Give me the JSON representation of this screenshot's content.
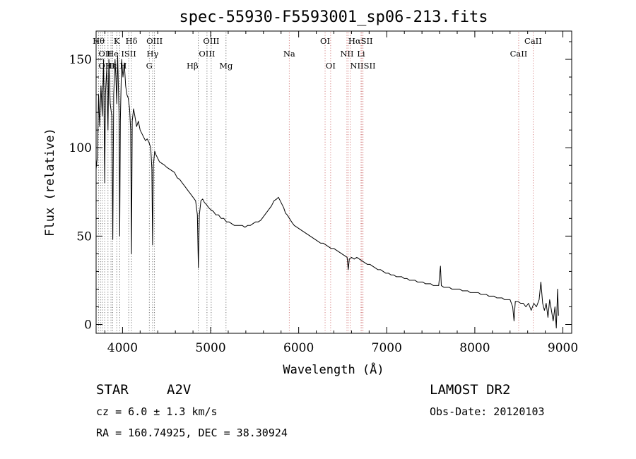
{
  "chart_data": {
    "type": "line",
    "title": "spec-55930-F5593001_sp06-213.fits",
    "xlabel": "Wavelength (Å)",
    "ylabel": "Flux (relative)",
    "xlim": [
      3700,
      9100
    ],
    "ylim": [
      -5,
      166
    ],
    "xticks": [
      4000,
      5000,
      6000,
      7000,
      8000,
      9000
    ],
    "yticks": [
      0,
      50,
      100,
      150
    ],
    "grid": false,
    "series": [
      {
        "values": [
          [
            3700,
            88
          ],
          [
            3715,
            95
          ],
          [
            3728,
            130
          ],
          [
            3740,
            112
          ],
          [
            3755,
            135
          ],
          [
            3770,
            118
          ],
          [
            3785,
            150
          ],
          [
            3798,
            80
          ],
          [
            3806,
            130
          ],
          [
            3820,
            145
          ],
          [
            3835,
            110
          ],
          [
            3845,
            150
          ],
          [
            3860,
            125
          ],
          [
            3878,
            118
          ],
          [
            3889,
            48
          ],
          [
            3900,
            130
          ],
          [
            3915,
            150
          ],
          [
            3925,
            140
          ],
          [
            3934,
            125
          ],
          [
            3945,
            152
          ],
          [
            3955,
            130
          ],
          [
            3960,
            120
          ],
          [
            3968,
            50
          ],
          [
            3975,
            115
          ],
          [
            3990,
            150
          ],
          [
            4005,
            140
          ],
          [
            4020,
            148
          ],
          [
            4035,
            135
          ],
          [
            4050,
            130
          ],
          [
            4065,
            128
          ],
          [
            4080,
            122
          ],
          [
            4092,
            110
          ],
          [
            4102,
            40
          ],
          [
            4110,
            115
          ],
          [
            4125,
            122
          ],
          [
            4140,
            118
          ],
          [
            4160,
            112
          ],
          [
            4180,
            115
          ],
          [
            4200,
            110
          ],
          [
            4220,
            108
          ],
          [
            4240,
            106
          ],
          [
            4260,
            104
          ],
          [
            4280,
            105
          ],
          [
            4300,
            103
          ],
          [
            4320,
            100
          ],
          [
            4333,
            88
          ],
          [
            4341,
            45
          ],
          [
            4350,
            90
          ],
          [
            4365,
            98
          ],
          [
            4380,
            96
          ],
          [
            4400,
            94
          ],
          [
            4420,
            92
          ],
          [
            4450,
            91
          ],
          [
            4480,
            90
          ],
          [
            4500,
            89
          ],
          [
            4530,
            88
          ],
          [
            4560,
            87
          ],
          [
            4590,
            86
          ],
          [
            4620,
            83
          ],
          [
            4650,
            82
          ],
          [
            4680,
            80
          ],
          [
            4710,
            78
          ],
          [
            4740,
            76
          ],
          [
            4770,
            74
          ],
          [
            4800,
            72
          ],
          [
            4830,
            70
          ],
          [
            4850,
            62
          ],
          [
            4861,
            32
          ],
          [
            4872,
            62
          ],
          [
            4890,
            70
          ],
          [
            4910,
            71
          ],
          [
            4930,
            69
          ],
          [
            4950,
            68
          ],
          [
            4980,
            66
          ],
          [
            5000,
            65
          ],
          [
            5030,
            64
          ],
          [
            5060,
            62
          ],
          [
            5090,
            62
          ],
          [
            5120,
            60
          ],
          [
            5150,
            60
          ],
          [
            5180,
            58
          ],
          [
            5210,
            58
          ],
          [
            5240,
            57
          ],
          [
            5270,
            56
          ],
          [
            5300,
            56
          ],
          [
            5330,
            56
          ],
          [
            5360,
            56
          ],
          [
            5390,
            55
          ],
          [
            5420,
            56
          ],
          [
            5450,
            56
          ],
          [
            5480,
            57
          ],
          [
            5510,
            58
          ],
          [
            5540,
            58
          ],
          [
            5570,
            59
          ],
          [
            5600,
            61
          ],
          [
            5630,
            63
          ],
          [
            5660,
            65
          ],
          [
            5690,
            67
          ],
          [
            5720,
            70
          ],
          [
            5750,
            71
          ],
          [
            5770,
            72
          ],
          [
            5790,
            70
          ],
          [
            5810,
            68
          ],
          [
            5830,
            66
          ],
          [
            5850,
            63
          ],
          [
            5870,
            62
          ],
          [
            5895,
            60
          ],
          [
            5920,
            58
          ],
          [
            5950,
            56
          ],
          [
            5980,
            55
          ],
          [
            6010,
            54
          ],
          [
            6040,
            53
          ],
          [
            6070,
            52
          ],
          [
            6100,
            51
          ],
          [
            6130,
            50
          ],
          [
            6160,
            49
          ],
          [
            6190,
            48
          ],
          [
            6220,
            47
          ],
          [
            6250,
            46
          ],
          [
            6280,
            46
          ],
          [
            6310,
            45
          ],
          [
            6340,
            44
          ],
          [
            6370,
            43
          ],
          [
            6400,
            43
          ],
          [
            6430,
            42
          ],
          [
            6460,
            41
          ],
          [
            6490,
            40
          ],
          [
            6520,
            39
          ],
          [
            6550,
            38
          ],
          [
            6563,
            31
          ],
          [
            6575,
            37
          ],
          [
            6600,
            38
          ],
          [
            6630,
            37
          ],
          [
            6660,
            38
          ],
          [
            6690,
            37
          ],
          [
            6720,
            36
          ],
          [
            6750,
            35
          ],
          [
            6780,
            34
          ],
          [
            6810,
            34
          ],
          [
            6840,
            33
          ],
          [
            6870,
            32
          ],
          [
            6900,
            31
          ],
          [
            6930,
            31
          ],
          [
            6960,
            30
          ],
          [
            6990,
            29
          ],
          [
            7020,
            29
          ],
          [
            7050,
            28
          ],
          [
            7080,
            28
          ],
          [
            7110,
            27
          ],
          [
            7140,
            27
          ],
          [
            7170,
            27
          ],
          [
            7200,
            26
          ],
          [
            7230,
            26
          ],
          [
            7260,
            25
          ],
          [
            7290,
            25
          ],
          [
            7320,
            25
          ],
          [
            7350,
            24
          ],
          [
            7380,
            24
          ],
          [
            7410,
            24
          ],
          [
            7440,
            23
          ],
          [
            7470,
            23
          ],
          [
            7500,
            23
          ],
          [
            7530,
            22
          ],
          [
            7560,
            22
          ],
          [
            7590,
            22
          ],
          [
            7610,
            33
          ],
          [
            7620,
            22
          ],
          [
            7650,
            21
          ],
          [
            7680,
            21
          ],
          [
            7710,
            21
          ],
          [
            7740,
            20
          ],
          [
            7770,
            20
          ],
          [
            7800,
            20
          ],
          [
            7830,
            20
          ],
          [
            7860,
            19
          ],
          [
            7890,
            19
          ],
          [
            7920,
            19
          ],
          [
            7950,
            18
          ],
          [
            7980,
            18
          ],
          [
            8010,
            18
          ],
          [
            8040,
            18
          ],
          [
            8070,
            17
          ],
          [
            8100,
            17
          ],
          [
            8130,
            17
          ],
          [
            8160,
            16
          ],
          [
            8190,
            16
          ],
          [
            8220,
            16
          ],
          [
            8250,
            15
          ],
          [
            8280,
            15
          ],
          [
            8310,
            15
          ],
          [
            8340,
            14
          ],
          [
            8370,
            14
          ],
          [
            8400,
            14
          ],
          [
            8430,
            10
          ],
          [
            8445,
            2
          ],
          [
            8460,
            13
          ],
          [
            8490,
            13
          ],
          [
            8520,
            12
          ],
          [
            8550,
            12
          ],
          [
            8580,
            10
          ],
          [
            8610,
            12
          ],
          [
            8640,
            8
          ],
          [
            8670,
            12
          ],
          [
            8700,
            10
          ],
          [
            8730,
            14
          ],
          [
            8750,
            24
          ],
          [
            8770,
            12
          ],
          [
            8790,
            8
          ],
          [
            8810,
            12
          ],
          [
            8830,
            4
          ],
          [
            8850,
            14
          ],
          [
            8870,
            8
          ],
          [
            8890,
            2
          ],
          [
            8910,
            10
          ],
          [
            8925,
            -2
          ],
          [
            8940,
            20
          ],
          [
            8950,
            5
          ]
        ]
      }
    ],
    "line_markers": [
      {
        "label": "Hθ",
        "wave": 3797,
        "row": 0,
        "anchor": "end"
      },
      {
        "label": "OII",
        "wave": 3727,
        "row": 1,
        "anchor": "start"
      },
      {
        "label": "OIII",
        "wave": 3727,
        "row": 2,
        "anchor": "start"
      },
      {
        "label": "K",
        "wave": 3934,
        "row": 0,
        "anchor": "middle"
      },
      {
        "label": "He",
        "wave": 3889,
        "row": 1,
        "anchor": "middle"
      },
      {
        "label": "Hε",
        "wave": 3870,
        "row": 2,
        "anchor": "middle"
      },
      {
        "label": "Hδ",
        "wave": 4102,
        "row": 0,
        "anchor": "middle"
      },
      {
        "label": "ISII",
        "wave": 4070,
        "row": 1,
        "anchor": "middle"
      },
      {
        "label": "H",
        "wave": 3968,
        "row": 2,
        "anchor": "start"
      },
      {
        "label": "OIII",
        "wave": 4363,
        "row": 0,
        "anchor": "middle"
      },
      {
        "label": "Hγ",
        "wave": 4341,
        "row": 1,
        "anchor": "middle"
      },
      {
        "label": "G",
        "wave": 4304,
        "row": 2,
        "anchor": "middle"
      },
      {
        "label": "OIII",
        "wave": 5007,
        "row": 0,
        "anchor": "middle"
      },
      {
        "label": "OIII",
        "wave": 4959,
        "row": 1,
        "anchor": "middle"
      },
      {
        "label": "Hβ",
        "wave": 4861,
        "row": 2,
        "anchor": "end"
      },
      {
        "label": "Mg",
        "wave": 5175,
        "row": 2,
        "anchor": "middle"
      },
      {
        "label": "Na",
        "wave": 5893,
        "row": 1,
        "anchor": "middle"
      },
      {
        "label": "OI",
        "wave": 6300,
        "row": 0,
        "anchor": "middle"
      },
      {
        "label": "OI",
        "wave": 6363,
        "row": 2,
        "anchor": "middle"
      },
      {
        "label": "HαSII",
        "wave": 6563,
        "row": 0,
        "anchor": "start"
      },
      {
        "label": "NII",
        "wave": 6548,
        "row": 1,
        "anchor": "middle"
      },
      {
        "label": "Li",
        "wave": 6708,
        "row": 1,
        "anchor": "middle"
      },
      {
        "label": "NIISII",
        "wave": 6584,
        "row": 2,
        "anchor": "start"
      },
      {
        "label": "CaII",
        "wave": 8662,
        "row": 0,
        "anchor": "middle"
      },
      {
        "label": "CaII",
        "wave": 8498,
        "row": 1,
        "anchor": "middle"
      }
    ],
    "marker_lines": [
      3727,
      3750,
      3771,
      3797,
      3835,
      3869,
      3889,
      3934,
      3968,
      4070,
      4102,
      4304,
      4341,
      4363,
      4861,
      4959,
      5007,
      5175,
      5893,
      6300,
      6363,
      6548,
      6563,
      6584,
      6708,
      6717,
      6731,
      8498,
      8662
    ]
  },
  "info": {
    "object_type": "STAR",
    "subclass": "A2V",
    "survey": "LAMOST DR2",
    "cz": "cz = 6.0 ± 1.3 km/s",
    "obs_date": "Obs-Date: 20120103",
    "coords": "RA = 160.74925, DEC =  38.30924"
  },
  "colors": {
    "spectrum": "#000000",
    "marker_line": "#cc6666",
    "marker_line_blue": "#555555",
    "axes": "#000000"
  }
}
